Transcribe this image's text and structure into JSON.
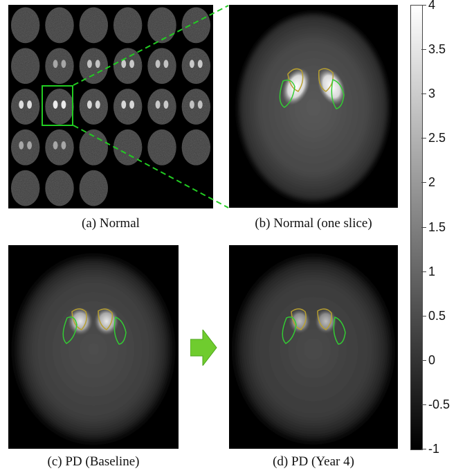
{
  "captions": {
    "a": "(a) Normal",
    "b": "(b) Normal (one slice)",
    "c": "(c) PD (Baseline)",
    "d": "(d) PD (Year 4)"
  },
  "colorbar": {
    "ticks": [
      "4",
      "3.5",
      "3",
      "2.5",
      "2",
      "1.5",
      "1",
      "0.5",
      "0",
      "-0.5",
      "-1"
    ],
    "range": [
      -1,
      4
    ]
  },
  "montage": {
    "rows": 5,
    "cols": 6,
    "highlighted_slice": "row 3, column 2"
  },
  "colors": {
    "highlight_box": "#22cc22",
    "putamen_contour": "#33cc33",
    "caudate_contour": "#b8a030",
    "arrow": "#6fcc2e"
  }
}
